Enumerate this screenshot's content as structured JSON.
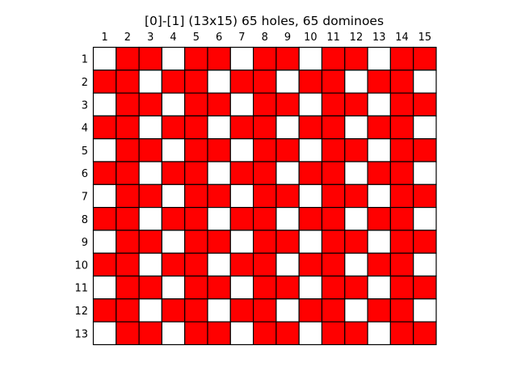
{
  "chart_data": {
    "type": "heatmap",
    "title": "[0]-[1]  (13x15) 65 holes, 65 dominoes",
    "xlabel": "",
    "ylabel": "",
    "x_ticks": [
      "1",
      "2",
      "3",
      "4",
      "5",
      "6",
      "7",
      "8",
      "9",
      "10",
      "11",
      "12",
      "13",
      "14",
      "15"
    ],
    "y_ticks": [
      "1",
      "2",
      "3",
      "4",
      "5",
      "6",
      "7",
      "8",
      "9",
      "10",
      "11",
      "12",
      "13"
    ],
    "rows": 13,
    "cols": 15,
    "legend": {
      "0": "hole",
      "1": "domino"
    },
    "colors": {
      "hole": "#ffffff",
      "domino": "#ff0000",
      "grid": "#000000"
    },
    "grid": true,
    "cells": [
      [
        0,
        1,
        1,
        0,
        1,
        1,
        0,
        1,
        1,
        0,
        1,
        1,
        0,
        1,
        1
      ],
      [
        1,
        1,
        0,
        1,
        1,
        0,
        1,
        1,
        0,
        1,
        1,
        0,
        1,
        1,
        0
      ],
      [
        0,
        1,
        1,
        0,
        1,
        1,
        0,
        1,
        1,
        0,
        1,
        1,
        0,
        1,
        1
      ],
      [
        1,
        1,
        0,
        1,
        1,
        0,
        1,
        1,
        0,
        1,
        1,
        0,
        1,
        1,
        0
      ],
      [
        0,
        1,
        1,
        0,
        1,
        1,
        0,
        1,
        1,
        0,
        1,
        1,
        0,
        1,
        1
      ],
      [
        1,
        1,
        0,
        1,
        1,
        0,
        1,
        1,
        0,
        1,
        1,
        0,
        1,
        1,
        0
      ],
      [
        0,
        1,
        1,
        0,
        1,
        1,
        0,
        1,
        1,
        0,
        1,
        1,
        0,
        1,
        1
      ],
      [
        1,
        1,
        0,
        1,
        1,
        0,
        1,
        1,
        0,
        1,
        1,
        0,
        1,
        1,
        0
      ],
      [
        0,
        1,
        1,
        0,
        1,
        1,
        0,
        1,
        1,
        0,
        1,
        1,
        0,
        1,
        1
      ],
      [
        1,
        1,
        0,
        1,
        1,
        0,
        1,
        1,
        0,
        1,
        1,
        0,
        1,
        1,
        0
      ],
      [
        0,
        1,
        1,
        0,
        1,
        1,
        0,
        1,
        1,
        0,
        1,
        1,
        0,
        1,
        1
      ],
      [
        1,
        1,
        0,
        1,
        1,
        0,
        1,
        1,
        0,
        1,
        1,
        0,
        1,
        1,
        0
      ],
      [
        0,
        1,
        1,
        0,
        1,
        1,
        0,
        1,
        1,
        0,
        1,
        1,
        0,
        1,
        1
      ]
    ]
  }
}
